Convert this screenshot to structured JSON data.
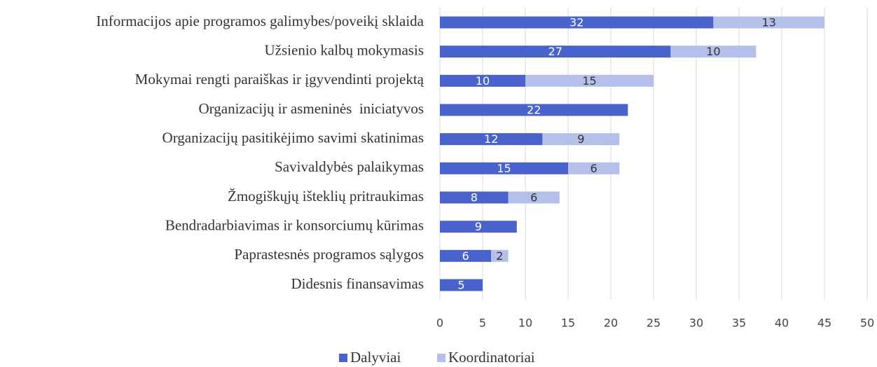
{
  "chart_data": {
    "type": "bar",
    "orientation": "horizontal",
    "stacked": true,
    "categories": [
      "Informacijos apie programos galimybes/poveikį sklaida",
      "Užsienio kalbų mokymasis",
      "Mokymai rengti paraiškas ir įgyvendinti projektą",
      "Organizacijų ir asmeninės  iniciatyvos",
      "Organizacijų pasitikėjimo savimi skatinimas",
      "Savivaldybės palaikymas",
      "Žmogiškųjų išteklių pritraukimas",
      "Bendradarbiavimas ir konsorciumų kūrimas",
      "Paprastesnės programos sąlygos",
      "Didesnis finansavimas"
    ],
    "series": [
      {
        "name": "Dalyviai",
        "color": "#4a63cc",
        "values": [
          32,
          27,
          10,
          22,
          12,
          15,
          8,
          9,
          6,
          5
        ]
      },
      {
        "name": "Koordinatoriai",
        "color": "#b4bfea",
        "values": [
          13,
          10,
          15,
          null,
          9,
          6,
          6,
          null,
          2,
          null
        ]
      }
    ],
    "xlim": [
      0,
      50
    ],
    "xticks": [
      0,
      5,
      10,
      15,
      20,
      25,
      30,
      35,
      40,
      45,
      50
    ],
    "grid": true,
    "legend": "bottom"
  }
}
